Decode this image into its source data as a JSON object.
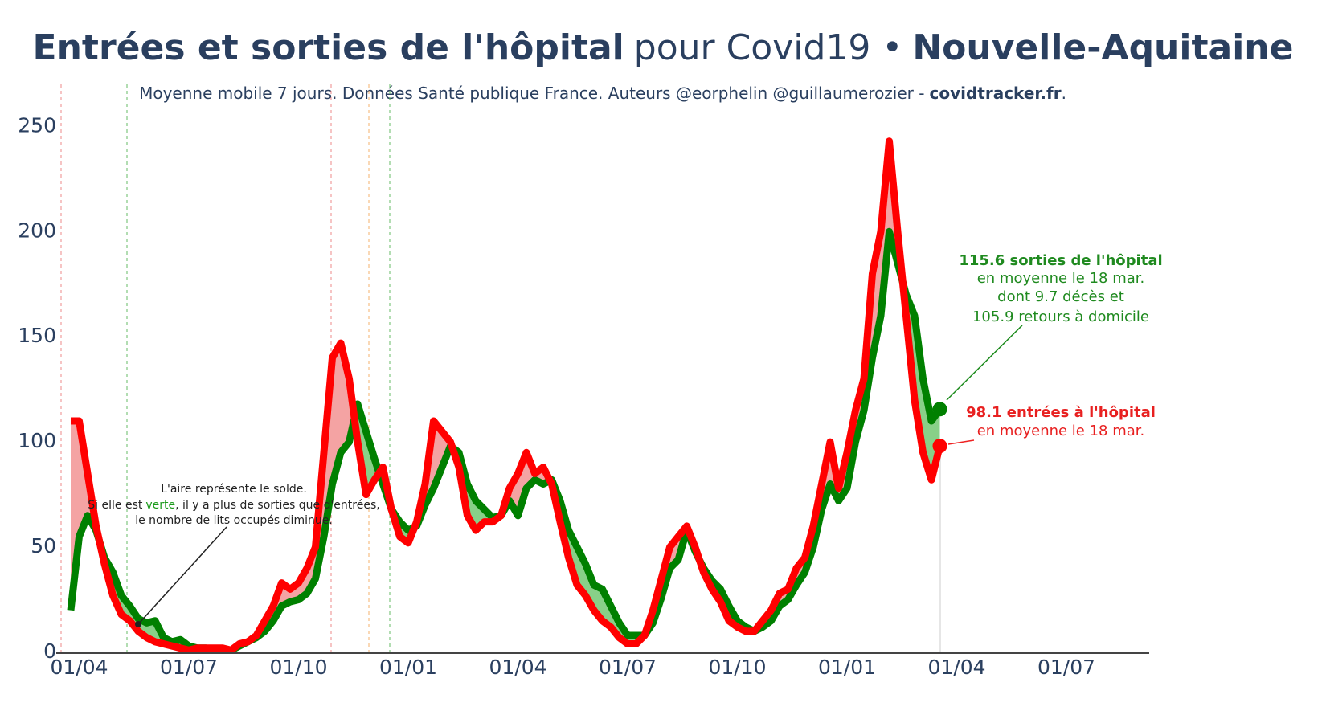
{
  "chart_data": {
    "type": "line",
    "title": {
      "main": "Entrées et sorties de l'hôpital",
      "middle": "pour Covid19 •",
      "region": "Nouvelle-Aquitaine"
    },
    "subtitle": {
      "text": "Moyenne mobile 7 jours. Données Santé publique France. Auteurs @eorphelin @guillaumerozier -",
      "site": "covidtracker.fr",
      "end": "."
    },
    "categories": [
      null,
      "01/04",
      null,
      null,
      null,
      null,
      null,
      null,
      null,
      null,
      null,
      null,
      null,
      null,
      "01/07",
      null,
      null,
      null,
      null,
      null,
      null,
      null,
      null,
      null,
      null,
      null,
      null,
      "01/10",
      null,
      null,
      null,
      null,
      null,
      null,
      null,
      null,
      null,
      null,
      null,
      null,
      "01/01",
      null,
      null,
      null,
      null,
      null,
      null,
      null,
      null,
      null,
      null,
      null,
      null,
      "01/04",
      null,
      null,
      null,
      null,
      null,
      null,
      null,
      null,
      null,
      null,
      null,
      null,
      "01/07",
      null,
      null,
      null,
      null,
      null,
      null,
      null,
      null,
      null,
      null,
      null,
      null,
      "01/10",
      null,
      null,
      null,
      null,
      null,
      null,
      null,
      null,
      null,
      null,
      null,
      null,
      "01/01",
      null,
      null,
      null,
      null,
      null,
      null,
      null,
      null,
      null,
      null,
      null,
      null,
      "01/04",
      null,
      null,
      null,
      null,
      null,
      null,
      null,
      null,
      null,
      null,
      null,
      null,
      "01/07",
      null,
      null,
      null,
      null,
      null,
      null,
      null,
      null,
      null
    ],
    "series": [
      {
        "color": "#008000",
        "fill": "#88d088",
        "values": [
          20,
          55,
          65,
          58,
          45,
          38,
          27,
          22,
          16,
          14,
          15,
          7,
          5,
          6,
          3,
          2,
          2,
          1,
          1,
          1,
          3,
          5,
          7,
          10,
          15,
          22,
          24,
          25,
          28,
          35,
          55,
          80,
          95,
          100,
          118,
          105,
          92,
          80,
          68,
          62,
          58,
          60,
          70,
          78,
          88,
          98,
          95,
          80,
          72,
          68,
          64,
          65,
          72,
          65,
          78,
          82,
          80,
          82,
          72,
          58,
          50,
          42,
          32,
          30,
          22,
          14,
          8,
          8,
          8,
          14,
          26,
          40,
          44,
          58,
          48,
          40,
          34,
          30,
          22,
          15,
          12,
          10,
          12,
          15,
          22,
          25,
          32,
          38,
          50,
          68,
          80,
          72,
          78,
          100,
          115,
          140,
          160,
          200,
          185,
          170,
          160,
          130,
          110,
          115.6,
          null,
          null,
          null,
          null,
          null,
          null,
          null,
          null,
          null,
          null,
          null,
          null,
          null,
          null,
          null,
          null,
          null,
          null,
          null,
          null,
          null,
          null,
          null,
          null
        ]
      },
      {
        "color": "#ff0000",
        "fill": "#f4a3a3",
        "values": [
          110,
          110,
          85,
          60,
          42,
          27,
          18,
          15,
          10,
          7,
          5,
          4,
          3,
          2,
          1,
          2,
          2,
          2,
          2,
          1,
          4,
          5,
          8,
          15,
          22,
          33,
          30,
          33,
          40,
          50,
          95,
          140,
          147,
          130,
          100,
          75,
          82,
          88,
          68,
          55,
          52,
          62,
          80,
          110,
          105,
          100,
          88,
          65,
          58,
          62,
          62,
          65,
          78,
          85,
          95,
          85,
          88,
          80,
          62,
          45,
          32,
          27,
          20,
          15,
          12,
          7,
          4,
          4,
          8,
          20,
          35,
          50,
          55,
          60,
          50,
          38,
          30,
          24,
          15,
          12,
          10,
          10,
          15,
          20,
          28,
          30,
          40,
          45,
          60,
          80,
          100,
          78,
          95,
          115,
          130,
          180,
          200,
          243,
          200,
          160,
          120,
          95,
          82,
          98.1,
          null,
          null,
          null,
          null,
          null,
          null,
          null,
          null,
          null,
          null,
          null,
          null,
          null,
          null,
          null,
          null,
          null,
          null,
          null,
          null,
          null,
          null,
          null,
          null
        ]
      }
    ],
    "ylim": [
      0,
      270
    ],
    "yticks": [
      0,
      50,
      100,
      150,
      200,
      250
    ],
    "annotations": {
      "exits": [
        "115.6 sorties de l'hôpital",
        "en moyenne le 18 mar.",
        "dont 9.7 décès et",
        "105.9 retours à domicile"
      ],
      "entries": [
        "98.1 entrées à l'hôpital",
        "en moyenne le 18 mar."
      ],
      "note": {
        "line1": "L'aire représente le solde.",
        "line2a": "Si elle est",
        "line2b": "verte",
        "line2c": ", il y a plus de sorties que d'entrées,",
        "line3": "le nombre de lits occupés diminue."
      }
    }
  }
}
